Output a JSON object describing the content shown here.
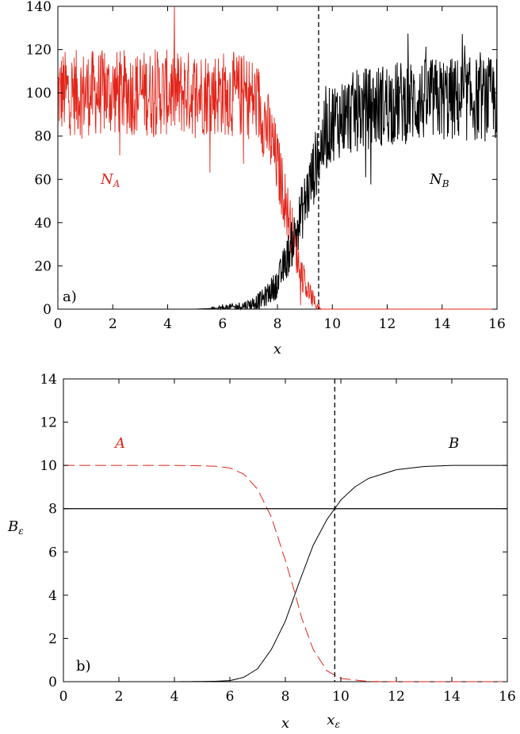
{
  "chart_data": [
    {
      "type": "line",
      "panel_label": "a)",
      "xlabel": "x",
      "ylabel": "",
      "xlim": [
        0,
        16
      ],
      "ylim": [
        0,
        140
      ],
      "xticks": [
        "0",
        "2",
        "4",
        "6",
        "8",
        "10",
        "12",
        "14",
        "16"
      ],
      "yticks": [
        "0",
        "20",
        "40",
        "60",
        "80",
        "100",
        "120",
        "140"
      ],
      "vline": {
        "x": 9.5,
        "style": "dashed"
      },
      "annotations": [
        {
          "text": "N_A",
          "base": "N",
          "sub": "A",
          "color": "#e3261b"
        },
        {
          "text": "N_B",
          "base": "N",
          "sub": "B",
          "color": "#000000"
        }
      ],
      "series": [
        {
          "color": "#e3261b",
          "style": "noisy-dash-dot",
          "x": [
            0,
            1,
            2,
            3,
            4,
            5,
            6,
            7,
            7.3,
            7.6,
            7.9,
            8.2,
            8.5,
            8.8,
            9.1,
            9.4,
            9.6,
            10,
            12,
            14,
            16
          ],
          "y": [
            100,
            100,
            100,
            100,
            100,
            100,
            100,
            98,
            95,
            85,
            72,
            55,
            38,
            20,
            9,
            2,
            0,
            0,
            0,
            0,
            0
          ]
        },
        {
          "color": "#000000",
          "style": "noisy-solid",
          "x": [
            0,
            4,
            5,
            6,
            6.5,
            7,
            7.5,
            8,
            8.3,
            8.6,
            8.9,
            9.2,
            9.5,
            9.8,
            10,
            11,
            12,
            13,
            14,
            16
          ],
          "y": [
            0,
            0,
            0,
            0.5,
            1,
            2,
            5,
            12,
            22,
            33,
            45,
            58,
            72,
            82,
            87,
            92,
            95,
            96,
            97,
            97
          ]
        }
      ]
    },
    {
      "type": "line",
      "panel_label": "b)",
      "xlabel": "x",
      "ylabel": "B_ε",
      "ylabel_base": "B",
      "ylabel_sub": "ε",
      "xlim": [
        0,
        16
      ],
      "ylim": [
        0,
        14
      ],
      "xticks": [
        "0",
        "2",
        "4",
        "6",
        "8",
        "10",
        "12",
        "14",
        "16"
      ],
      "yticks": [
        "0",
        "2",
        "4",
        "6",
        "8",
        "10",
        "12",
        "14"
      ],
      "hline": {
        "y": 8,
        "style": "solid"
      },
      "vline": {
        "x": 9.78,
        "style": "dashed",
        "label": "x_ε",
        "label_base": "x",
        "label_sub": "ε"
      },
      "annotations": [
        {
          "text": "A",
          "color": "#e3261b"
        },
        {
          "text": "B",
          "color": "#000000"
        }
      ],
      "series": [
        {
          "name": "A",
          "color": "#e3261b",
          "style": "dashed",
          "x": [
            0,
            2,
            4,
            5,
            5.5,
            6,
            6.5,
            7,
            7.5,
            8,
            8.3,
            8.6,
            9,
            9.5,
            10,
            11,
            12,
            14,
            16
          ],
          "y": [
            10,
            10,
            10,
            9.98,
            9.96,
            9.88,
            9.6,
            8.9,
            7.6,
            5.6,
            4.3,
            2.9,
            1.5,
            0.5,
            0.15,
            0.01,
            0,
            0,
            0
          ]
        },
        {
          "name": "B",
          "color": "#000000",
          "style": "solid",
          "x": [
            0,
            2,
            4,
            5,
            5.5,
            6,
            6.5,
            7,
            7.5,
            8,
            8.5,
            9,
            9.5,
            9.78,
            10,
            10.5,
            11,
            12,
            13,
            14,
            16
          ],
          "y": [
            0,
            0,
            0,
            0.01,
            0.02,
            0.05,
            0.2,
            0.6,
            1.5,
            2.8,
            4.6,
            6.3,
            7.5,
            8.0,
            8.4,
            9.0,
            9.4,
            9.8,
            9.95,
            10,
            10
          ]
        }
      ]
    }
  ]
}
